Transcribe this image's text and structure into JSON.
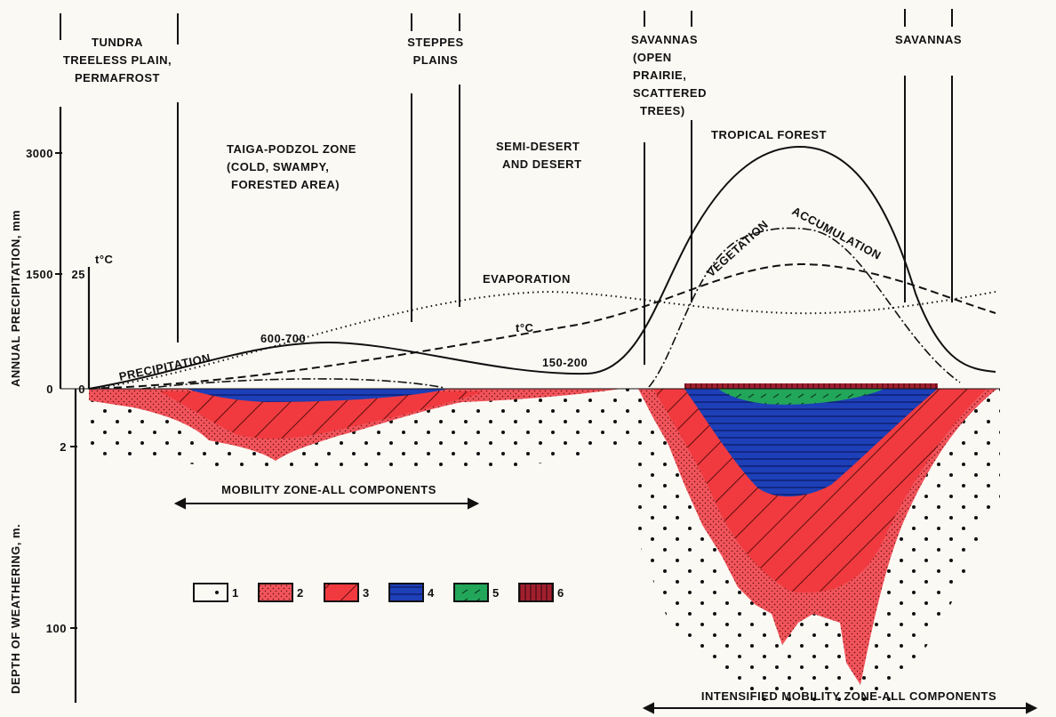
{
  "zones": {
    "tundra": [
      "TUNDRA",
      "TREELESS PLAIN,",
      "PERMAFROST"
    ],
    "steppes": [
      "STEPPES",
      "PLAINS"
    ],
    "savannas_left": [
      "SAVANNAS",
      "(OPEN",
      "PRAIRIE,",
      "SCATTERED",
      "TREES)"
    ],
    "savannas_right": [
      "SAVANNAS"
    ],
    "taiga": [
      "TAIGA-PODZOL ZONE",
      "(COLD, SWAMPY,",
      "FORESTED AREA)"
    ],
    "desert": [
      "SEMI-DESERT",
      "AND DESERT"
    ],
    "tropical": [
      "TROPICAL FOREST"
    ]
  },
  "axis": {
    "precipitation_label": "ANNUAL PRECIPITATION, mm",
    "depth_label": "DEPTH OF WEATHERING, m.",
    "temperature_label": "t°C",
    "precipitation_ticks": [
      "3000",
      "1500",
      "0"
    ],
    "temperature_ticks": [
      "25",
      "0"
    ],
    "depth_ticks": [
      "2",
      "100"
    ]
  },
  "curve_labels": {
    "evaporation": "EVAPORATION",
    "precipitation": "PRECIPITATION",
    "precipitation_taiga": "600-700",
    "precipitation_desert": "150-200",
    "temperature": "t°C",
    "vegetation": "VEGETATION",
    "accumulation": "ACCUMULATION"
  },
  "mobility_zones": [
    "MOBILITY ZONE-ALL COMPONENTS",
    "INTENSIFIED MOBILITY ZONE-ALL COMPONENTS"
  ],
  "legend": [
    "1",
    "2",
    "3",
    "4",
    "5",
    "6"
  ]
}
